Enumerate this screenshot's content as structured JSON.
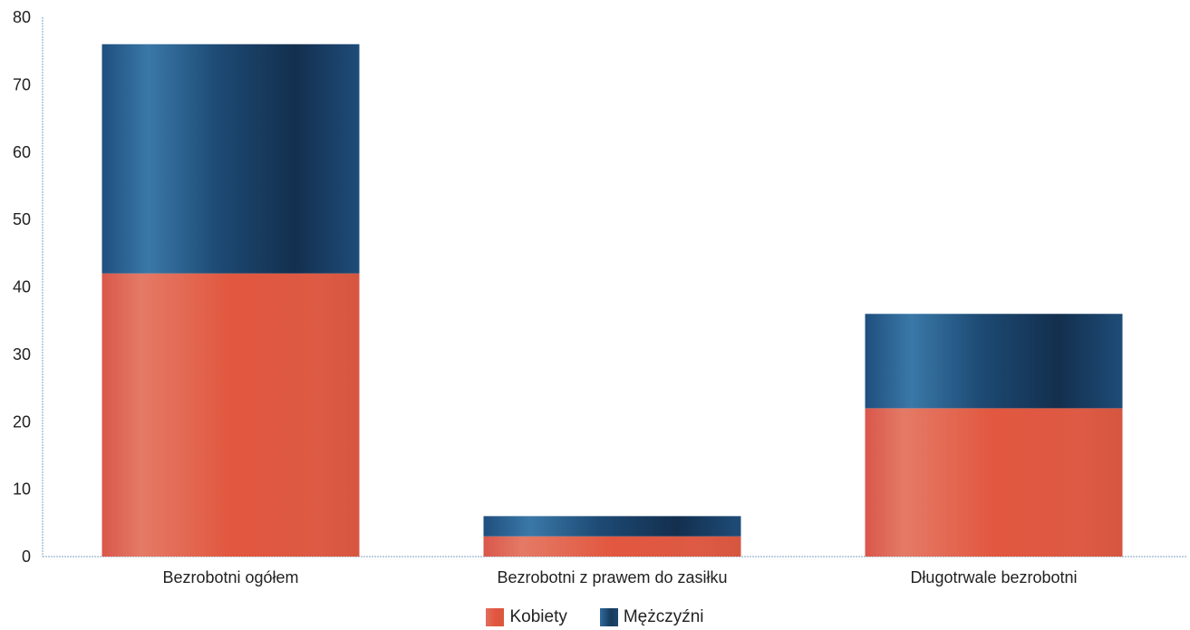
{
  "chart_data": {
    "type": "bar",
    "stacked": true,
    "categories": [
      "Bezrobotni ogółem",
      "Bezrobotni z prawem do zasiłku",
      "Długotrwale bezrobotni"
    ],
    "series": [
      {
        "name": "Kobiety",
        "values": [
          42,
          3,
          22
        ],
        "color": "#e2563f"
      },
      {
        "name": "Mężczyźni",
        "values": [
          34,
          3,
          14
        ],
        "color": "#1c4670"
      }
    ],
    "ylim": [
      0,
      80
    ],
    "yticks": [
      "0",
      "10",
      "20",
      "30",
      "40",
      "50",
      "60",
      "70",
      "80"
    ],
    "title": "",
    "xlabel": "",
    "ylabel": "",
    "grid": false,
    "legend": "bottom-center"
  }
}
